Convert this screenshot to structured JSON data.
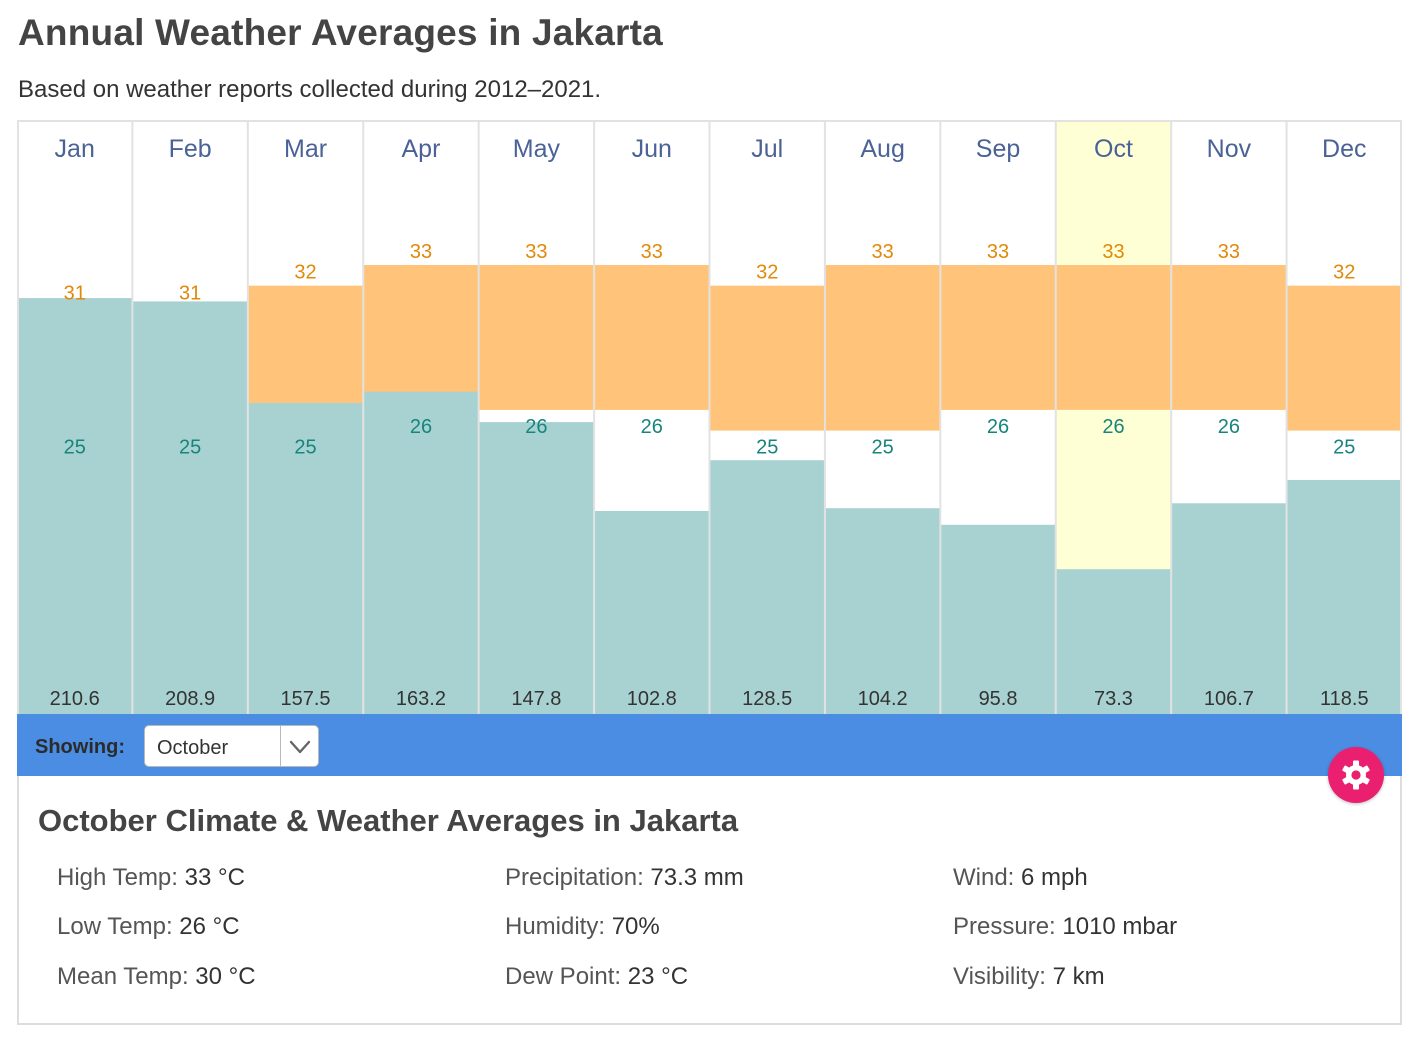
{
  "page": {
    "title": "Annual Weather Averages in Jakarta",
    "subtitle": "Based on weather reports collected during 2012–2021."
  },
  "colors": {
    "temp_band": "#ffc479",
    "precip_bar": "#a8d2d1",
    "highlight": "#ffffd6",
    "month_text": "#4a6296",
    "high_text": "#e0890a",
    "low_text": "#17857c",
    "toolbar": "#4a8de3",
    "settings_button": "#ea1f6f"
  },
  "chart_data": {
    "type": "bar",
    "title": "Annual Weather Averages in Jakarta",
    "categories": [
      "Jan",
      "Feb",
      "Mar",
      "Apr",
      "May",
      "Jun",
      "Jul",
      "Aug",
      "Sep",
      "Oct",
      "Nov",
      "Dec"
    ],
    "highlighted_category": "Oct",
    "series": [
      {
        "name": "High Temp (°C)",
        "values": [
          31,
          31,
          32,
          33,
          33,
          33,
          32,
          33,
          33,
          33,
          33,
          32
        ]
      },
      {
        "name": "Low Temp (°C)",
        "values": [
          25,
          25,
          25,
          26,
          26,
          26,
          25,
          25,
          26,
          26,
          26,
          25
        ]
      },
      {
        "name": "Precipitation (mm)",
        "values": [
          210.6,
          208.9,
          157.5,
          163.2,
          147.8,
          102.8,
          128.5,
          104.2,
          95.8,
          73.3,
          106.7,
          118.5
        ]
      }
    ],
    "temp_axis_range": [
      24,
      35
    ],
    "precip_axis_range": [
      0,
      400
    ],
    "grid": true,
    "legend": "none"
  },
  "toolbar": {
    "showing_label": "Showing:",
    "selected_month": "October"
  },
  "details": {
    "title": "October Climate & Weather Averages in Jakarta",
    "high_temp": {
      "label": "High Temp:",
      "value": "33 °C"
    },
    "low_temp": {
      "label": "Low Temp:",
      "value": "26 °C"
    },
    "mean_temp": {
      "label": "Mean Temp:",
      "value": "30 °C"
    },
    "precipitation": {
      "label": "Precipitation:",
      "value": "73.3 mm"
    },
    "humidity": {
      "label": "Humidity:",
      "value": "70%"
    },
    "dew_point": {
      "label": "Dew Point:",
      "value": "23 °C"
    },
    "wind": {
      "label": "Wind:",
      "value": "6 mph"
    },
    "pressure": {
      "label": "Pressure:",
      "value": "1010 mbar"
    },
    "visibility": {
      "label": "Visibility:",
      "value": "7 km"
    }
  }
}
